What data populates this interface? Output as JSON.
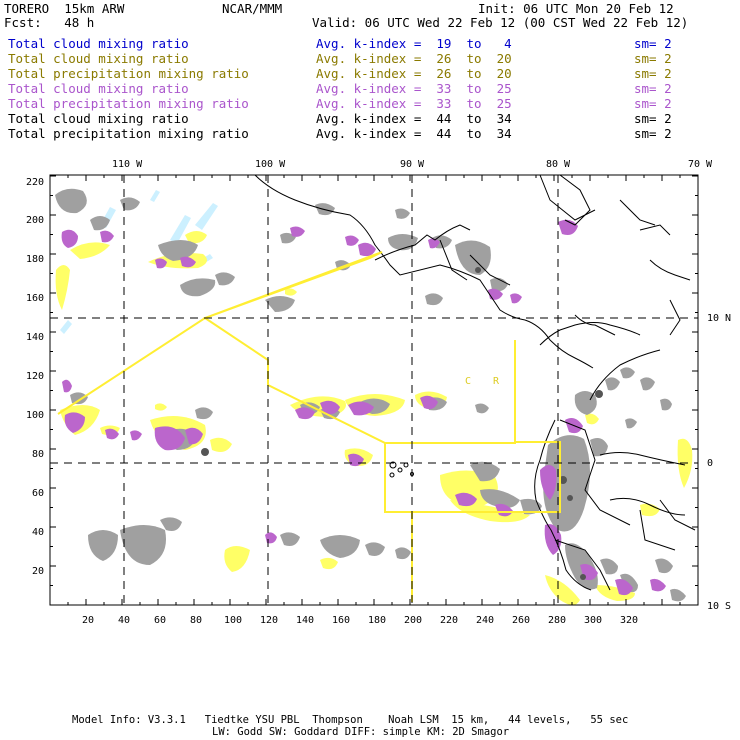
{
  "header": {
    "title": "TORERO  15km ARW",
    "center": "NCAR/MMM",
    "init": "Init: 06 UTC Mon 20 Feb 12",
    "fcst": "Fcst:   48 h",
    "valid": "Valid: 06 UTC Wed 22 Feb 12 (00 CST Wed 22 Feb 12)"
  },
  "legend": [
    {
      "name": "Total cloud mixing ratio",
      "kindex": "Avg. k-index =  19  to   4",
      "sm": "sm= 2",
      "color": "#0000cc"
    },
    {
      "name": "Total cloud mixing ratio",
      "kindex": "Avg. k-index =  26  to  20",
      "sm": "sm= 2",
      "color": "#8a7a00"
    },
    {
      "name": "Total precipitation mixing ratio",
      "kindex": "Avg. k-index =  26  to  20",
      "sm": "sm= 2",
      "color": "#8a7a00"
    },
    {
      "name": "Total cloud mixing ratio",
      "kindex": "Avg. k-index =  33  to  25",
      "sm": "sm= 2",
      "color": "#aa55cc"
    },
    {
      "name": "Total precipitation mixing ratio",
      "kindex": "Avg. k-index =  33  to  25",
      "sm": "sm= 2",
      "color": "#aa55cc"
    },
    {
      "name": "Total cloud mixing ratio",
      "kindex": "Avg. k-index =  44  to  34",
      "sm": "sm= 2",
      "color": "#000000"
    },
    {
      "name": "Total precipitation mixing ratio",
      "kindex": "Avg. k-index =  44  to  34",
      "sm": "sm= 2",
      "color": "#000000"
    }
  ],
  "axes": {
    "top_lon_labels": [
      "110 W",
      "100 W",
      "90 W",
      "80 W",
      "70 W"
    ],
    "right_lat_labels": [
      "10 N",
      "0",
      "10 S"
    ],
    "y_ticks": [
      "220",
      "200",
      "180",
      "160",
      "140",
      "120",
      "100",
      "80",
      "60",
      "40",
      "20"
    ],
    "x_ticks": [
      "20",
      "40",
      "60",
      "80",
      "100",
      "120",
      "140",
      "160",
      "180",
      "200",
      "220",
      "240",
      "260",
      "280",
      "300",
      "320"
    ]
  },
  "region_labels": [
    "C",
    "R"
  ],
  "footer": {
    "line1": "Model Info: V3.3.1   Tiedtke YSU PBL  Thompson    Noah LSM  15 km,   44 levels,   55 sec",
    "line2": "LW: Godd SW: Goddard DIFF: simple KM: 2D Smagor"
  },
  "colors": {
    "gray": "#a0a0a0",
    "purple": "#bb66cc",
    "yellow": "#ffff66",
    "cyan": "#ccf0ff",
    "darkgray": "#555555",
    "box_yellow": "#ffee33"
  }
}
